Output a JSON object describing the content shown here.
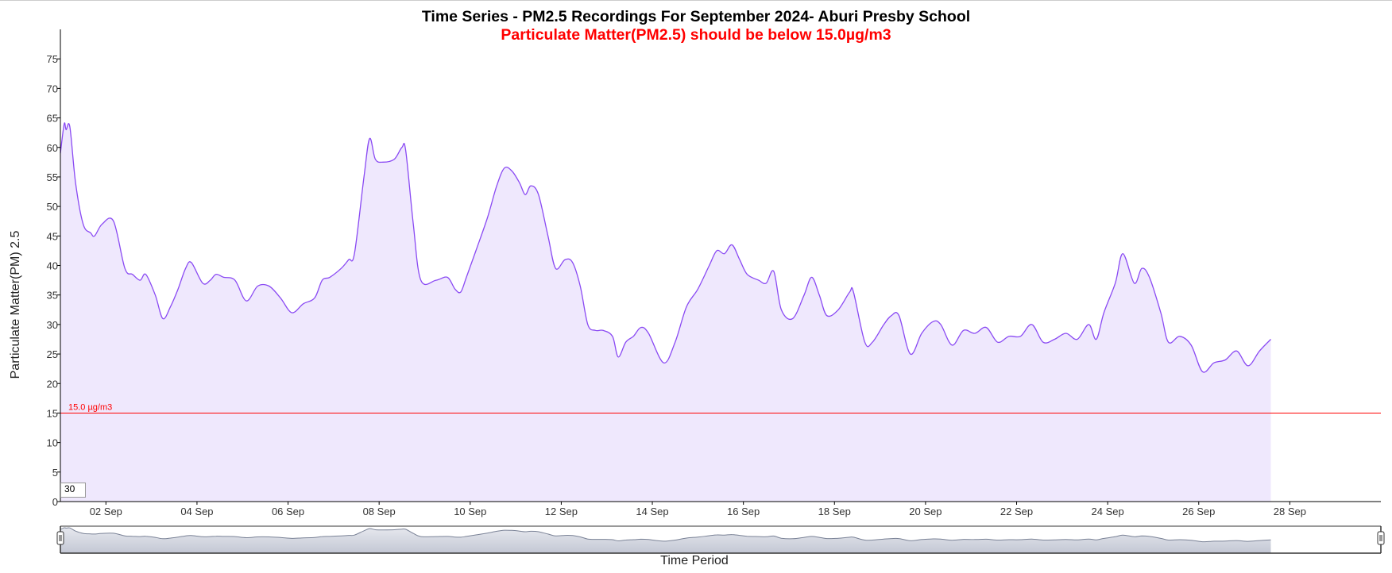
{
  "title": "Time Series - PM2.5 Recordings For September 2024- Aburi Presby School",
  "subtitle": "Particulate Matter(PM2.5) should be below 15.0µg/m3",
  "roll_period": "30",
  "colors": {
    "line": "#8a4af3",
    "fill": "#efe8fd",
    "threshold": "#ff0000",
    "navigator_fill": "#c3c7d4",
    "navigator_line": "#7a8296"
  },
  "chart_data": {
    "type": "area",
    "title": "Time Series - PM2.5 Recordings For September 2024- Aburi Presby School",
    "subtitle": "Particulate Matter(PM2.5) should be below 15.0µg/m3",
    "xlabel": "Time Period",
    "ylabel": "Particulate Matter(PM) 2.5",
    "ylim": [
      0,
      80
    ],
    "yticks": [
      0,
      5,
      10,
      15,
      20,
      25,
      30,
      35,
      40,
      45,
      50,
      55,
      60,
      65,
      70,
      75
    ],
    "xlim": [
      "2024-09-01",
      "2024-09-30"
    ],
    "xticks": [
      {
        "date": "2024-09-02",
        "label": "02 Sep"
      },
      {
        "date": "2024-09-04",
        "label": "04 Sep"
      },
      {
        "date": "2024-09-06",
        "label": "06 Sep"
      },
      {
        "date": "2024-09-08",
        "label": "08 Sep"
      },
      {
        "date": "2024-09-10",
        "label": "10 Sep"
      },
      {
        "date": "2024-09-12",
        "label": "12 Sep"
      },
      {
        "date": "2024-09-14",
        "label": "14 Sep"
      },
      {
        "date": "2024-09-16",
        "label": "16 Sep"
      },
      {
        "date": "2024-09-18",
        "label": "18 Sep"
      },
      {
        "date": "2024-09-20",
        "label": "20 Sep"
      },
      {
        "date": "2024-09-22",
        "label": "22 Sep"
      },
      {
        "date": "2024-09-24",
        "label": "24 Sep"
      },
      {
        "date": "2024-09-26",
        "label": "26 Sep"
      },
      {
        "date": "2024-09-28",
        "label": "28 Sep"
      }
    ],
    "threshold": {
      "value": 15.0,
      "label": "15.0 µg/m3"
    },
    "grid": false,
    "series": [
      {
        "points": [
          [
            "2024-09-01 00:00",
            59
          ],
          [
            "2024-09-01 02:00",
            64
          ],
          [
            "2024-09-01 03:00",
            63
          ],
          [
            "2024-09-01 05:00",
            63.5
          ],
          [
            "2024-09-01 08:00",
            54
          ],
          [
            "2024-09-01 12:00",
            47
          ],
          [
            "2024-09-01 16:00",
            45.5
          ],
          [
            "2024-09-01 18:00",
            45
          ],
          [
            "2024-09-01 22:00",
            47
          ],
          [
            "2024-09-02 04:00",
            47.5
          ],
          [
            "2024-09-02 10:00",
            39.5
          ],
          [
            "2024-09-02 14:00",
            38.5
          ],
          [
            "2024-09-02 18:00",
            37.5
          ],
          [
            "2024-09-02 21:00",
            38.5
          ],
          [
            "2024-09-03 02:00",
            35
          ],
          [
            "2024-09-03 06:00",
            31
          ],
          [
            "2024-09-03 10:00",
            33
          ],
          [
            "2024-09-03 14:00",
            36
          ],
          [
            "2024-09-03 18:00",
            39.5
          ],
          [
            "2024-09-03 21:00",
            40.5
          ],
          [
            "2024-09-04 03:00",
            37
          ],
          [
            "2024-09-04 07:00",
            37.5
          ],
          [
            "2024-09-04 10:00",
            38.5
          ],
          [
            "2024-09-04 14:00",
            38
          ],
          [
            "2024-09-04 20:00",
            37.5
          ],
          [
            "2024-09-05 02:00",
            34
          ],
          [
            "2024-09-05 08:00",
            36.5
          ],
          [
            "2024-09-05 14:00",
            36.5
          ],
          [
            "2024-09-05 20:00",
            34.5
          ],
          [
            "2024-09-06 02:00",
            32
          ],
          [
            "2024-09-06 08:00",
            33.5
          ],
          [
            "2024-09-06 14:00",
            34.5
          ],
          [
            "2024-09-06 18:00",
            37.5
          ],
          [
            "2024-09-06 22:00",
            38
          ],
          [
            "2024-09-07 04:00",
            39.5
          ],
          [
            "2024-09-07 08:00",
            41
          ],
          [
            "2024-09-07 11:00",
            42
          ],
          [
            "2024-09-07 16:00",
            55
          ],
          [
            "2024-09-07 19:00",
            61.5
          ],
          [
            "2024-09-07 22:00",
            58
          ],
          [
            "2024-09-08 02:00",
            57.5
          ],
          [
            "2024-09-08 08:00",
            58
          ],
          [
            "2024-09-08 12:00",
            60
          ],
          [
            "2024-09-08 14:00",
            59.5
          ],
          [
            "2024-09-08 18:00",
            47
          ],
          [
            "2024-09-08 22:00",
            37.5
          ],
          [
            "2024-09-09 06:00",
            37.5
          ],
          [
            "2024-09-09 12:00",
            38
          ],
          [
            "2024-09-09 16:00",
            36
          ],
          [
            "2024-09-09 19:00",
            35.5
          ],
          [
            "2024-09-09 22:00",
            38
          ],
          [
            "2024-09-10 03:00",
            42.5
          ],
          [
            "2024-09-10 09:00",
            48
          ],
          [
            "2024-09-10 14:00",
            53.5
          ],
          [
            "2024-09-10 18:00",
            56.5
          ],
          [
            "2024-09-10 22:00",
            56
          ],
          [
            "2024-09-11 02:00",
            54
          ],
          [
            "2024-09-11 05:00",
            52
          ],
          [
            "2024-09-11 08:00",
            53.5
          ],
          [
            "2024-09-11 12:00",
            52
          ],
          [
            "2024-09-11 17:00",
            45
          ],
          [
            "2024-09-11 21:00",
            39.5
          ],
          [
            "2024-09-12 02:00",
            41
          ],
          [
            "2024-09-12 06:00",
            40.5
          ],
          [
            "2024-09-12 10:00",
            36.5
          ],
          [
            "2024-09-12 14:00",
            30
          ],
          [
            "2024-09-12 18:00",
            29
          ],
          [
            "2024-09-12 22:00",
            29
          ],
          [
            "2024-09-13 03:00",
            28
          ],
          [
            "2024-09-13 06:00",
            24.5
          ],
          [
            "2024-09-13 10:00",
            27
          ],
          [
            "2024-09-13 14:00",
            28
          ],
          [
            "2024-09-13 18:00",
            29.5
          ],
          [
            "2024-09-13 22:00",
            28.5
          ],
          [
            "2024-09-14 06:00",
            23.5
          ],
          [
            "2024-09-14 12:00",
            27
          ],
          [
            "2024-09-14 18:00",
            33
          ],
          [
            "2024-09-15 00:00",
            36
          ],
          [
            "2024-09-15 06:00",
            40
          ],
          [
            "2024-09-15 10:00",
            42.5
          ],
          [
            "2024-09-15 14:00",
            42
          ],
          [
            "2024-09-15 18:00",
            43.5
          ],
          [
            "2024-09-15 22:00",
            41
          ],
          [
            "2024-09-16 02:00",
            38.5
          ],
          [
            "2024-09-16 08:00",
            37.5
          ],
          [
            "2024-09-16 12:00",
            37
          ],
          [
            "2024-09-16 16:00",
            39
          ],
          [
            "2024-09-16 20:00",
            32.5
          ],
          [
            "2024-09-17 02:00",
            31
          ],
          [
            "2024-09-17 08:00",
            35
          ],
          [
            "2024-09-17 12:00",
            38
          ],
          [
            "2024-09-17 16:00",
            35
          ],
          [
            "2024-09-17 20:00",
            31.5
          ],
          [
            "2024-09-18 02:00",
            32.5
          ],
          [
            "2024-09-18 08:00",
            35.5
          ],
          [
            "2024-09-18 10:00",
            35.5
          ],
          [
            "2024-09-18 16:00",
            27
          ],
          [
            "2024-09-18 20:00",
            27
          ],
          [
            "2024-09-19 02:00",
            30
          ],
          [
            "2024-09-19 06:00",
            31.5
          ],
          [
            "2024-09-19 10:00",
            31.5
          ],
          [
            "2024-09-19 16:00",
            25
          ],
          [
            "2024-09-19 22:00",
            28.5
          ],
          [
            "2024-09-20 04:00",
            30.5
          ],
          [
            "2024-09-20 08:00",
            30
          ],
          [
            "2024-09-20 14:00",
            26.5
          ],
          [
            "2024-09-20 20:00",
            29
          ],
          [
            "2024-09-21 02:00",
            28.5
          ],
          [
            "2024-09-21 08:00",
            29.5
          ],
          [
            "2024-09-21 14:00",
            27
          ],
          [
            "2024-09-21 20:00",
            28
          ],
          [
            "2024-09-22 02:00",
            28
          ],
          [
            "2024-09-22 08:00",
            30
          ],
          [
            "2024-09-22 14:00",
            27
          ],
          [
            "2024-09-22 20:00",
            27.5
          ],
          [
            "2024-09-23 02:00",
            28.5
          ],
          [
            "2024-09-23 08:00",
            27.5
          ],
          [
            "2024-09-23 14:00",
            30
          ],
          [
            "2024-09-23 18:00",
            27.5
          ],
          [
            "2024-09-23 22:00",
            32
          ],
          [
            "2024-09-24 04:00",
            37
          ],
          [
            "2024-09-24 08:00",
            42
          ],
          [
            "2024-09-24 14:00",
            37
          ],
          [
            "2024-09-24 18:00",
            39.5
          ],
          [
            "2024-09-24 22:00",
            38
          ],
          [
            "2024-09-25 04:00",
            32
          ],
          [
            "2024-09-25 08:00",
            27
          ],
          [
            "2024-09-25 14:00",
            28
          ],
          [
            "2024-09-25 20:00",
            26.5
          ],
          [
            "2024-09-26 02:00",
            22
          ],
          [
            "2024-09-26 08:00",
            23.5
          ],
          [
            "2024-09-26 14:00",
            24
          ],
          [
            "2024-09-26 20:00",
            25.5
          ],
          [
            "2024-09-27 02:00",
            23
          ],
          [
            "2024-09-27 08:00",
            25.5
          ],
          [
            "2024-09-27 14:00",
            27.5
          ]
        ]
      }
    ]
  }
}
